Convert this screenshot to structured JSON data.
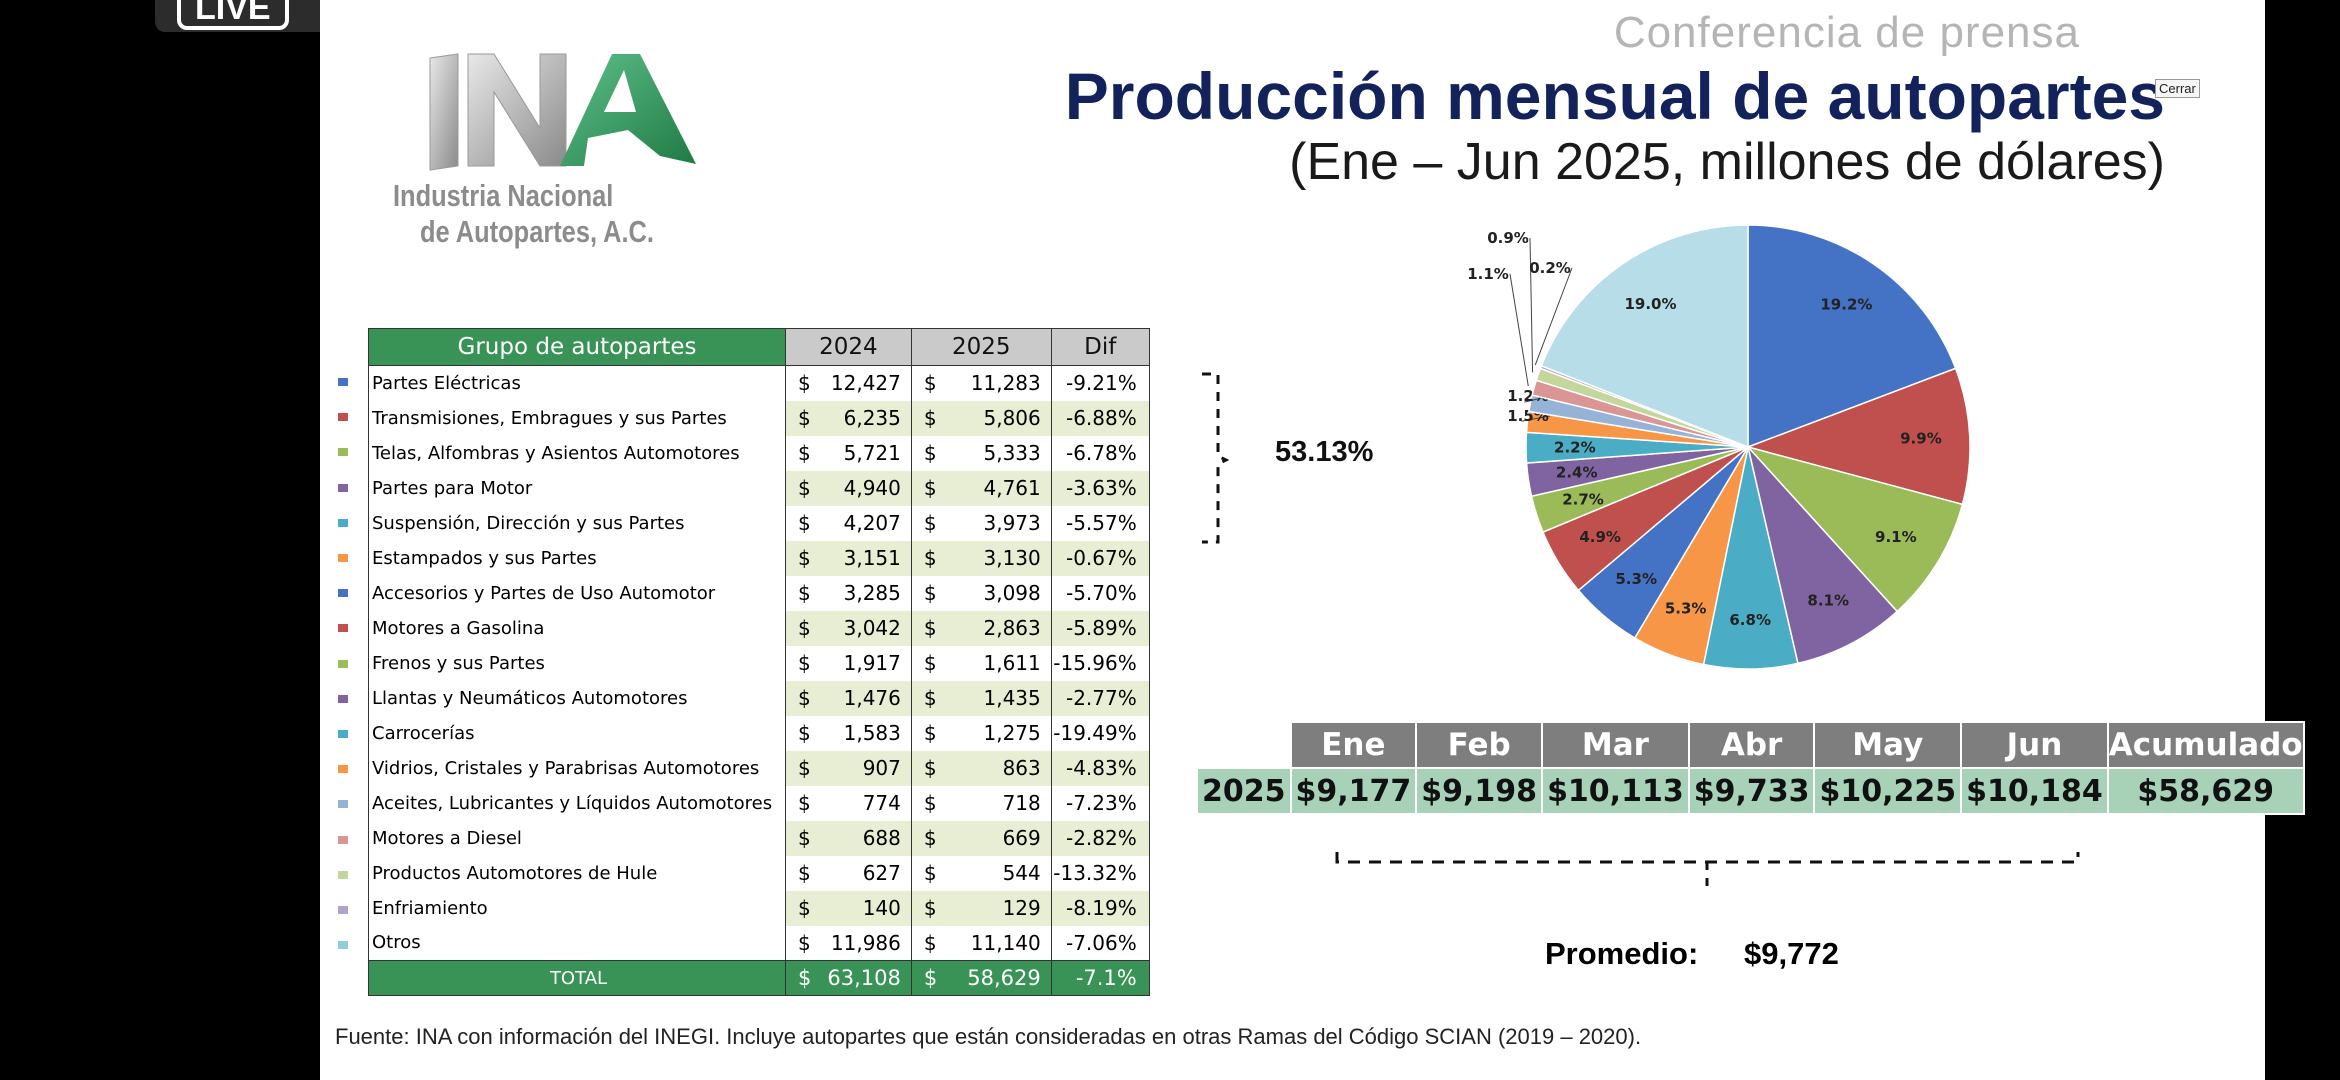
{
  "live_label": "LIVE",
  "header": {
    "conference": "Conferencia de prensa",
    "title": "Producción mensual de autopartes",
    "subtitle": "(Ene – Jun 2025, millones de dólares)",
    "close_label": "Cerrar"
  },
  "logo": {
    "mark": "INA",
    "line1": "Industria Nacional",
    "line2": "de Autopartes, A.C."
  },
  "parts_table": {
    "headers": [
      "Grupo de autopartes",
      "2024",
      "2025",
      "Dif"
    ],
    "currency": "$",
    "rows": [
      {
        "name": "Partes Eléctricas",
        "v2024": "12,427",
        "v2025": "11,283",
        "dif": "-9.21%",
        "color": "#4472c4"
      },
      {
        "name": "Transmisiones, Embragues y sus Partes",
        "v2024": "6,235",
        "v2025": "5,806",
        "dif": "-6.88%",
        "color": "#c0504d"
      },
      {
        "name": "Telas, Alfombras y Asientos Automotores",
        "v2024": "5,721",
        "v2025": "5,333",
        "dif": "-6.78%",
        "color": "#9bbb59"
      },
      {
        "name": "Partes para Motor",
        "v2024": "4,940",
        "v2025": "4,761",
        "dif": "-3.63%",
        "color": "#8064a2"
      },
      {
        "name": "Suspensión, Dirección y sus Partes",
        "v2024": "4,207",
        "v2025": "3,973",
        "dif": "-5.57%",
        "color": "#4bacc6"
      },
      {
        "name": "Estampados y sus Partes",
        "v2024": "3,151",
        "v2025": "3,130",
        "dif": "-0.67%",
        "color": "#f79646"
      },
      {
        "name": "Accesorios y Partes de Uso Automotor",
        "v2024": "3,285",
        "v2025": "3,098",
        "dif": "-5.70%",
        "color": "#4472c4"
      },
      {
        "name": "Motores a Gasolina",
        "v2024": "3,042",
        "v2025": "2,863",
        "dif": "-5.89%",
        "color": "#c0504d"
      },
      {
        "name": "Frenos y sus Partes",
        "v2024": "1,917",
        "v2025": "1,611",
        "dif": "-15.96%",
        "color": "#9bbb59"
      },
      {
        "name": "Llantas y Neumáticos Automotores",
        "v2024": "1,476",
        "v2025": "1,435",
        "dif": "-2.77%",
        "color": "#8064a2"
      },
      {
        "name": "Carrocerías",
        "v2024": "1,583",
        "v2025": "1,275",
        "dif": "-19.49%",
        "color": "#4bacc6"
      },
      {
        "name": "Vidrios, Cristales y Parabrisas Automotores",
        "v2024": "907",
        "v2025": "863",
        "dif": "-4.83%",
        "color": "#f79646"
      },
      {
        "name": "Aceites, Lubricantes y Líquidos Automotores",
        "v2024": "774",
        "v2025": "718",
        "dif": "-7.23%",
        "color": "#95b3d7"
      },
      {
        "name": "Motores a Diesel",
        "v2024": "688",
        "v2025": "669",
        "dif": "-2.82%",
        "color": "#d99694"
      },
      {
        "name": "Productos Automotores de Hule",
        "v2024": "627",
        "v2025": "544",
        "dif": "-13.32%",
        "color": "#c3d69b"
      },
      {
        "name": "Enfriamiento",
        "v2024": "140",
        "v2025": "129",
        "dif": "-8.19%",
        "color": "#b3a2c7"
      },
      {
        "name": "Otros",
        "v2024": "11,986",
        "v2025": "11,140",
        "dif": "-7.06%",
        "color": "#93cddd"
      }
    ],
    "total": {
      "label": "TOTAL",
      "v2024": "63,108",
      "v2025": "58,629",
      "dif": "-7.1%"
    }
  },
  "top_share": "53.13%",
  "chart_data": [
    {
      "type": "pie",
      "title": "",
      "slices": [
        {
          "label": "Partes Eléctricas",
          "value": 19.2,
          "text": "19.2%",
          "color": "#4472c4"
        },
        {
          "label": "Transmisiones, Embragues y sus Partes",
          "value": 9.9,
          "text": "9.9%",
          "color": "#c0504d"
        },
        {
          "label": "Telas, Alfombras y Asientos Automotores",
          "value": 9.1,
          "text": "9.1%",
          "color": "#9bbb59"
        },
        {
          "label": "Partes para Motor",
          "value": 8.1,
          "text": "8.1%",
          "color": "#8064a2"
        },
        {
          "label": "Suspensión, Dirección y sus Partes",
          "value": 6.8,
          "text": "6.8%",
          "color": "#4bacc6"
        },
        {
          "label": "Estampados y sus Partes",
          "value": 5.3,
          "text": "5.3%",
          "color": "#f79646"
        },
        {
          "label": "Accesorios y Partes de Uso Automotor",
          "value": 5.3,
          "text": "5.3%",
          "color": "#4472c4"
        },
        {
          "label": "Motores a Gasolina",
          "value": 4.9,
          "text": "4.9%",
          "color": "#c0504d"
        },
        {
          "label": "Frenos y sus Partes",
          "value": 2.7,
          "text": "2.7%",
          "color": "#9bbb59"
        },
        {
          "label": "Llantas y Neumáticos Automotores",
          "value": 2.4,
          "text": "2.4%",
          "color": "#8064a2"
        },
        {
          "label": "Carrocerías",
          "value": 2.2,
          "text": "2.2%",
          "color": "#4bacc6"
        },
        {
          "label": "Vidrios, Cristales y Parabrisas Automotores",
          "value": 1.5,
          "text": "1.5%",
          "color": "#f79646"
        },
        {
          "label": "Aceites, Lubricantes y Líquidos Automotores",
          "value": 1.2,
          "text": "1.2%",
          "color": "#95b3d7"
        },
        {
          "label": "Motores a Diesel",
          "value": 1.1,
          "text": "1.1%",
          "color": "#d99694"
        },
        {
          "label": "Productos Automotores de Hule",
          "value": 0.9,
          "text": "0.9%",
          "color": "#c3d69b"
        },
        {
          "label": "Enfriamiento",
          "value": 0.2,
          "text": "0.2%",
          "color": "#b3a2c7"
        },
        {
          "label": "Otros",
          "value": 19.0,
          "text": "19.0%",
          "color": "#b7dee8"
        }
      ]
    },
    {
      "type": "table",
      "row_label": "2025",
      "categories": [
        "Ene",
        "Feb",
        "Mar",
        "Abr",
        "May",
        "Jun",
        "Acumulado"
      ],
      "values": [
        9177,
        9198,
        10113,
        9733,
        10225,
        10184,
        58629
      ],
      "display": [
        "$9,177",
        "$9,198",
        "$10,113",
        "$9,733",
        "$10,225",
        "$10,184",
        "$58,629"
      ]
    }
  ],
  "average": {
    "label": "Promedio:",
    "value": "$9,772"
  },
  "source": "Fuente: INA con información del INEGI. Incluye autopartes que están consideradas en otras Ramas del Código SCIAN (2019 – 2020)."
}
